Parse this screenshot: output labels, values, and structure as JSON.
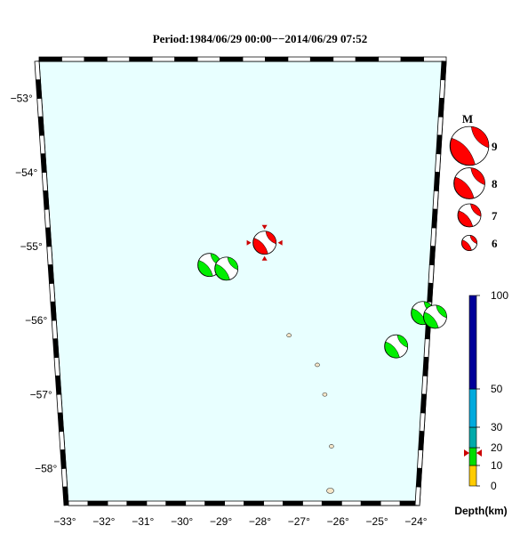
{
  "title": "Period:1984/06/29 00:00−−2014/06/29 07:52",
  "colors": {
    "ocean": "#e8ffff",
    "land": "#f5e6c8",
    "compression_shallow": "#00ee00",
    "compression_highlight": "#ff0000",
    "marker": "#cc0000"
  },
  "map": {
    "lon_ticks": [
      "−33°",
      "−32°",
      "−31°",
      "−30°",
      "−29°",
      "−28°",
      "−27°",
      "−26°",
      "−25°",
      "−24°"
    ],
    "lat_ticks": [
      "−53°",
      "−54°",
      "−55°",
      "−56°",
      "−57°",
      "−58°"
    ],
    "islands": [
      {
        "name": "island-1",
        "lon": -27.4,
        "lat": -56.2
      },
      {
        "name": "island-2",
        "lon": -26.7,
        "lat": -56.6
      },
      {
        "name": "island-3",
        "lon": -26.5,
        "lat": -57.0
      },
      {
        "name": "island-4",
        "lon": -26.3,
        "lat": -57.7
      },
      {
        "name": "island-5",
        "lon": -26.3,
        "lat": -58.3
      }
    ],
    "events": [
      {
        "lon": -28.0,
        "lat": -54.95,
        "mag": 7,
        "color": "red",
        "highlight": true,
        "depth": 17
      },
      {
        "lon": -29.3,
        "lat": -55.25,
        "mag": 7,
        "color": "green"
      },
      {
        "lon": -28.9,
        "lat": -55.3,
        "mag": 7,
        "color": "green"
      },
      {
        "lon": -24.8,
        "lat": -56.35,
        "mag": 7,
        "color": "green"
      },
      {
        "lon": -24.2,
        "lat": -55.9,
        "mag": 7,
        "color": "green"
      },
      {
        "lon": -23.9,
        "lat": -55.95,
        "mag": 7,
        "color": "green"
      }
    ]
  },
  "magnitude_legend": {
    "title": "M",
    "items": [
      {
        "label": "9",
        "mag": 9
      },
      {
        "label": "8",
        "mag": 8
      },
      {
        "label": "7",
        "mag": 7
      },
      {
        "label": "6",
        "mag": 6
      }
    ]
  },
  "depth_legend": {
    "title": "Depth(km)",
    "ticks": [
      "100",
      "50",
      "30",
      "20",
      "10",
      "0"
    ],
    "bands": [
      {
        "from": 0,
        "to": 10,
        "color": "#ffcc00"
      },
      {
        "from": 10,
        "to": 20,
        "color": "#00dd00"
      },
      {
        "from": 20,
        "to": 30,
        "color": "#00aaaa"
      },
      {
        "from": 30,
        "to": 50,
        "color": "#00aadd"
      },
      {
        "from": 50,
        "to": 100,
        "color": "#000099"
      }
    ],
    "marker_depth": 17
  }
}
